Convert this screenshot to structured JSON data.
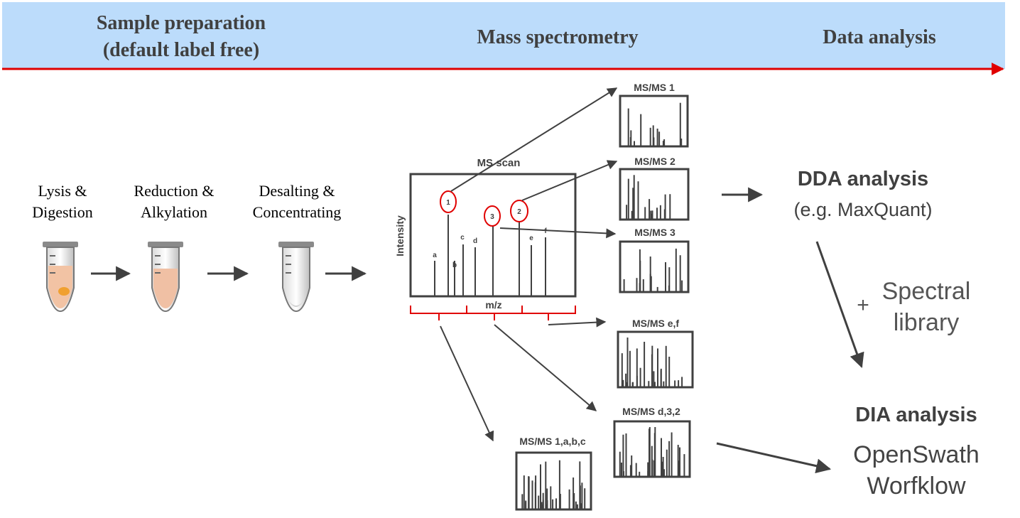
{
  "stages": {
    "sample_preparation_line1": "Sample preparation",
    "sample_preparation_line2": "(default label free)",
    "mass_spectrometry": "Mass spectrometry",
    "data_analysis": "Data analysis"
  },
  "steps": [
    {
      "line1": "Lysis &",
      "line2": "Digestion"
    },
    {
      "line1": "Reduction &",
      "line2": "Alkylation"
    },
    {
      "line1": "Desalting &",
      "line2": "Concentrating"
    }
  ],
  "ms_scan": {
    "title": "MS scan",
    "y_axis": "Intensity",
    "x_axis": "m/z",
    "peak_labels": [
      "a",
      "b",
      "c",
      "d",
      "e",
      "f"
    ],
    "selected_precursors": [
      "1",
      "2",
      "3"
    ]
  },
  "msms_spectra": [
    "MS/MS 1",
    "MS/MS 2",
    "MS/MS 3",
    "MS/MS e,f",
    "MS/MS d,3,2",
    "MS/MS 1,a,b,c"
  ],
  "dda": {
    "title": "DDA analysis",
    "example": "(e.g. MaxQuant)"
  },
  "spectral_library": {
    "plus": "+",
    "line1": "Spectral",
    "line2": "library"
  },
  "dia": {
    "title": "DIA analysis",
    "line1": "OpenSwath",
    "line2": "Worfklow"
  },
  "colors": {
    "banner": "#bcdcfb",
    "timeline_arrow": "#e00000",
    "selection": "#e00000",
    "text": "#404040"
  }
}
